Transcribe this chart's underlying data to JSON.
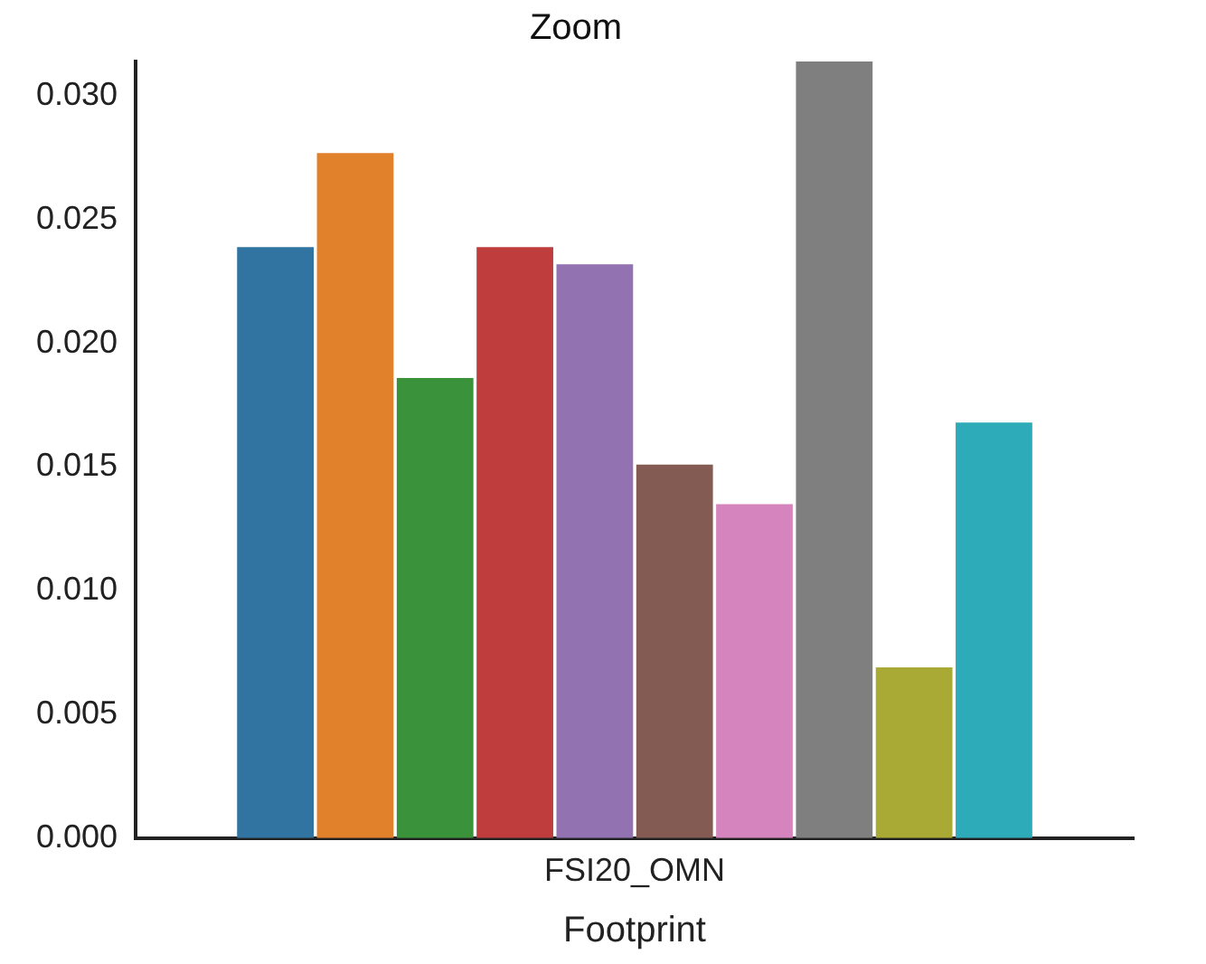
{
  "chart_data": {
    "type": "bar",
    "title": "Zoom",
    "xlabel": "Footprint",
    "categories": [
      "FSI20_OMN"
    ],
    "series": [
      {
        "color": "#3274a1",
        "values": [
          0.0239
        ]
      },
      {
        "color": "#e1812c",
        "values": [
          0.0277
        ]
      },
      {
        "color": "#3a923a",
        "values": [
          0.0186
        ]
      },
      {
        "color": "#c03d3e",
        "values": [
          0.0239
        ]
      },
      {
        "color": "#9372b2",
        "values": [
          0.0232
        ]
      },
      {
        "color": "#845b53",
        "values": [
          0.0151
        ]
      },
      {
        "color": "#d684bd",
        "values": [
          0.0135
        ]
      },
      {
        "color": "#7f7f7f",
        "values": [
          0.0314
        ]
      },
      {
        "color": "#a9aa35",
        "values": [
          0.0069
        ]
      },
      {
        "color": "#2eabb8",
        "values": [
          0.0168
        ]
      }
    ],
    "ylim": [
      0,
      0.0314
    ],
    "yticks": [
      {
        "value": 0,
        "label": "0.000"
      },
      {
        "value": 0.005,
        "label": "0.005"
      },
      {
        "value": 0.01,
        "label": "0.010"
      },
      {
        "value": 0.015,
        "label": "0.015"
      },
      {
        "value": 0.02,
        "label": "0.020"
      },
      {
        "value": 0.025,
        "label": "0.025"
      },
      {
        "value": 0.03,
        "label": "0.030"
      }
    ],
    "grid": false,
    "legend": false
  }
}
